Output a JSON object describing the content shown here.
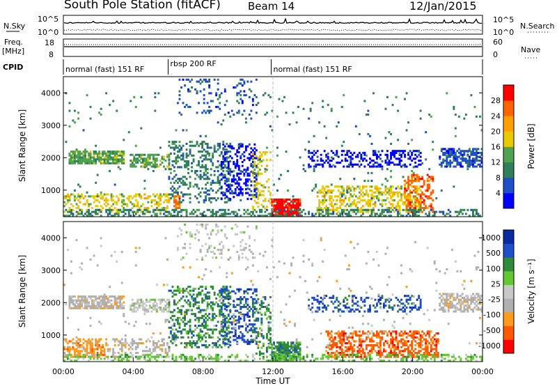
{
  "header": {
    "station": "South Pole Station (fitACF)",
    "beam": "Beam 14",
    "date": "12/Jan/2015"
  },
  "nsky_panel": {
    "left_label": "N.Sky",
    "right_label": "N.Search",
    "left_ticks": [
      "10^5",
      "10^0"
    ],
    "right_ticks": [
      "10^5",
      "10^0"
    ]
  },
  "freq_panel": {
    "left_label_line1": "Freq.",
    "left_label_line2": "[MHz]",
    "left_ticks": [
      "18",
      "8"
    ],
    "right_label": "Nave",
    "right_ticks": [
      "60",
      "0"
    ]
  },
  "cpid": {
    "label": "CPID",
    "segments": [
      {
        "name": "normal (fast) 151 RF",
        "start_h": 0,
        "end_h": 6.0
      },
      {
        "name": "rbsp 200 RF",
        "start_h": 6.0,
        "end_h": 11.9
      },
      {
        "name": "normal (fast) 151 RF",
        "start_h": 11.9,
        "end_h": 24
      }
    ]
  },
  "colors": {
    "power": [
      "#0000ff",
      "#1f4fc8",
      "#2f7f5a",
      "#4fa24f",
      "#e8c800",
      "#ffa000",
      "#ff6400",
      "#ff0000"
    ],
    "velocity": [
      "#ff0000",
      "#ff5a00",
      "#ff9a1a",
      "#b0b0b0",
      "#c8c8c8",
      "#63c831",
      "#2f8a3a",
      "#1e4fc8",
      "#0a2aa0"
    ]
  },
  "chart_data": [
    {
      "type": "heatmap",
      "name": "Power",
      "ylabel": "Slant Range [km]",
      "xlabel": "",
      "x_range_hours": [
        0,
        24
      ],
      "ylim": [
        180,
        4500
      ],
      "yticks": [
        1000,
        2000,
        3000,
        4000
      ],
      "colorbar": {
        "label": "Power [dB]",
        "ticks": [
          "4",
          "8",
          "12",
          "16",
          "20",
          "24",
          "28"
        ],
        "range": [
          0,
          32
        ]
      },
      "features": [
        {
          "t0": 0.3,
          "t1": 3.5,
          "r0": 1800,
          "r1": 2200,
          "level": 3,
          "density": 0.8
        },
        {
          "t0": 3.8,
          "t1": 6.0,
          "r0": 1700,
          "r1": 2100,
          "level": 3,
          "density": 0.6
        },
        {
          "t0": 0.0,
          "t1": 6.0,
          "r0": 300,
          "r1": 900,
          "level": 4,
          "density": 0.35
        },
        {
          "t0": 6.0,
          "t1": 9.5,
          "r0": 600,
          "r1": 2500,
          "level": 2,
          "density": 0.3
        },
        {
          "t0": 6.3,
          "t1": 6.6,
          "r0": 300,
          "r1": 800,
          "level": 6,
          "density": 0.6
        },
        {
          "t0": 6.5,
          "t1": 11.0,
          "r0": 3300,
          "r1": 4400,
          "level": 1,
          "density": 0.12
        },
        {
          "t0": 9.0,
          "t1": 11.0,
          "r0": 700,
          "r1": 2400,
          "level": 0,
          "density": 0.3
        },
        {
          "t0": 10.8,
          "t1": 11.8,
          "r0": 400,
          "r1": 2200,
          "level": 4,
          "density": 0.3
        },
        {
          "t0": 11.9,
          "t1": 13.5,
          "r0": 200,
          "r1": 700,
          "level": 7,
          "density": 0.9
        },
        {
          "t0": 14.0,
          "t1": 20.5,
          "r0": 1700,
          "r1": 2200,
          "level": 0,
          "density": 0.35
        },
        {
          "t0": 14.5,
          "t1": 20.5,
          "r0": 300,
          "r1": 1100,
          "level": 4,
          "density": 0.45
        },
        {
          "t0": 19.5,
          "t1": 21.2,
          "r0": 300,
          "r1": 1500,
          "level": 6,
          "density": 0.4
        },
        {
          "t0": 21.5,
          "t1": 24.0,
          "r0": 1700,
          "r1": 2300,
          "level": 1,
          "density": 0.6
        },
        {
          "t0": 0.0,
          "t1": 24.0,
          "r0": 180,
          "r1": 400,
          "level": 2,
          "density": 0.4
        },
        {
          "t0": 0.0,
          "t1": 24.0,
          "r0": 600,
          "r1": 4000,
          "level": 2,
          "density": 0.02
        }
      ]
    },
    {
      "type": "heatmap",
      "name": "Velocity",
      "ylabel": "Slant Range [km]",
      "xlabel": "Time UT",
      "x_range_hours": [
        0,
        24
      ],
      "xticks": [
        "00:00",
        "04:00",
        "08:00",
        "12:00",
        "16:00",
        "20:00",
        "00:00"
      ],
      "ylim": [
        180,
        4500
      ],
      "yticks": [
        1000,
        2000,
        3000,
        4000
      ],
      "colorbar": {
        "label": "Velocity [m s⁻¹]",
        "ticks": [
          "1000",
          "500",
          "100",
          "25",
          "-25",
          "-100",
          "-500",
          "-1000"
        ],
        "range": [
          -1000,
          1000
        ]
      },
      "features": [
        {
          "t0": 0.3,
          "t1": 3.5,
          "r0": 1800,
          "r1": 2200,
          "level": 3,
          "density": 0.8
        },
        {
          "t0": 3.8,
          "t1": 6.0,
          "r0": 1700,
          "r1": 2100,
          "level": 4,
          "density": 0.6
        },
        {
          "t0": 0.0,
          "t1": 2.5,
          "r0": 300,
          "r1": 900,
          "level": 2,
          "density": 0.55
        },
        {
          "t0": 2.5,
          "t1": 6.0,
          "r0": 300,
          "r1": 900,
          "level": 3,
          "density": 0.3
        },
        {
          "t0": 6.0,
          "t1": 9.5,
          "r0": 600,
          "r1": 2500,
          "level": 6,
          "density": 0.35
        },
        {
          "t0": 6.5,
          "t1": 11.0,
          "r0": 3300,
          "r1": 4400,
          "level": 4,
          "density": 0.12
        },
        {
          "t0": 9.0,
          "t1": 11.0,
          "r0": 700,
          "r1": 2400,
          "level": 7,
          "density": 0.35
        },
        {
          "t0": 10.8,
          "t1": 11.8,
          "r0": 400,
          "r1": 2200,
          "level": 6,
          "density": 0.3
        },
        {
          "t0": 11.9,
          "t1": 13.5,
          "r0": 200,
          "r1": 800,
          "level": 6,
          "density": 0.9
        },
        {
          "t0": 14.0,
          "t1": 20.5,
          "r0": 1700,
          "r1": 2200,
          "level": 7,
          "density": 0.3
        },
        {
          "t0": 15.0,
          "t1": 21.5,
          "r0": 300,
          "r1": 1100,
          "level": 1,
          "density": 0.5
        },
        {
          "t0": 21.5,
          "t1": 24.0,
          "r0": 1700,
          "r1": 2300,
          "level": 3,
          "density": 0.6
        },
        {
          "t0": 0.0,
          "t1": 24.0,
          "r0": 180,
          "r1": 400,
          "level": 5,
          "density": 0.35
        },
        {
          "t0": 0.0,
          "t1": 24.0,
          "r0": 600,
          "r1": 4000,
          "level": 3,
          "density": 0.02
        }
      ]
    }
  ]
}
